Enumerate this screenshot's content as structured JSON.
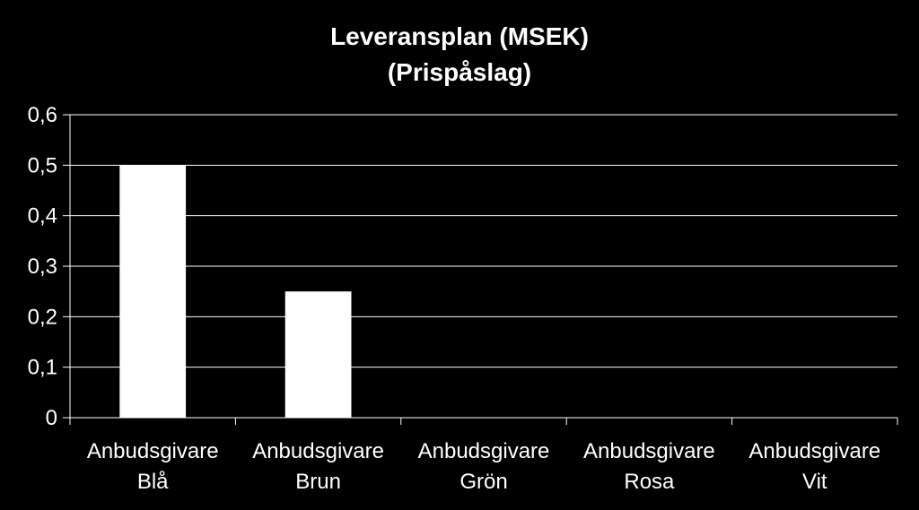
{
  "chart_data": {
    "type": "bar",
    "title": "Leveransplan (MSEK)",
    "subtitle": "(Prispåslag)",
    "categories": [
      [
        "Anbudsgivare",
        "Blå"
      ],
      [
        "Anbudsgivare",
        "Brun"
      ],
      [
        "Anbudsgivare",
        "Grön"
      ],
      [
        "Anbudsgivare",
        "Rosa"
      ],
      [
        "Anbudsgivare",
        "Vit"
      ]
    ],
    "values": [
      0.5,
      0.25,
      0,
      0,
      0
    ],
    "ylim": [
      0,
      0.6
    ],
    "yticks": [
      "0",
      "0,1",
      "0,2",
      "0,3",
      "0,4",
      "0,5",
      "0,6"
    ],
    "grid": true,
    "legend": "none",
    "colors": {
      "background": "#000000",
      "bar": "#ffffff",
      "grid": "#ffffff",
      "text": "#ffffff"
    }
  }
}
